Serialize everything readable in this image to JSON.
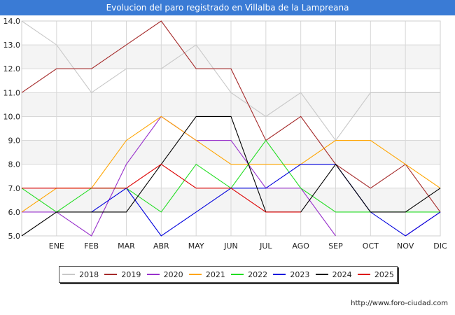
{
  "title": "Evolucion del paro registrado en Villalba de la Lampreana",
  "footer": "http://www.foro-ciudad.com",
  "chart_data": {
    "type": "line",
    "title": "Evolucion del paro registrado en Villalba de la Lampreana",
    "xlabel": "",
    "ylabel": "",
    "ylim": [
      5.0,
      14.0
    ],
    "yticks": [
      "5.0",
      "6.0",
      "7.0",
      "8.0",
      "9.0",
      "10.0",
      "11.0",
      "12.0",
      "13.0",
      "14.0"
    ],
    "categories": [
      "",
      "ENE",
      "FEB",
      "MAR",
      "ABR",
      "MAY",
      "JUN",
      "JUL",
      "AGO",
      "SEP",
      "OCT",
      "NOV",
      "DIC"
    ],
    "grid": true,
    "legend_position": "bottom",
    "series": [
      {
        "name": "2018",
        "color": "#c8c8c8",
        "values": [
          14,
          13,
          11,
          12,
          12,
          13,
          11,
          10,
          11,
          9,
          11,
          11,
          11
        ]
      },
      {
        "name": "2019",
        "color": "#a52a2a",
        "values": [
          11,
          12,
          12,
          13,
          14,
          12,
          12,
          9,
          10,
          8,
          7,
          8,
          6
        ]
      },
      {
        "name": "2020",
        "color": "#9932cc",
        "values": [
          6,
          6,
          5,
          8,
          10,
          9,
          9,
          7,
          7,
          5,
          null,
          5,
          6
        ]
      },
      {
        "name": "2021",
        "color": "#ffa500",
        "values": [
          6,
          7,
          7,
          9,
          10,
          9,
          8,
          8,
          8,
          9,
          9,
          8,
          7
        ]
      },
      {
        "name": "2022",
        "color": "#22dd22",
        "values": [
          7,
          6,
          7,
          7,
          6,
          8,
          7,
          9,
          7,
          6,
          6,
          6,
          6
        ]
      },
      {
        "name": "2023",
        "color": "#0000dd",
        "values": [
          null,
          null,
          6,
          7,
          5,
          6,
          7,
          7,
          8,
          8,
          6,
          5,
          6
        ]
      },
      {
        "name": "2024",
        "color": "#000000",
        "values": [
          5,
          6,
          6,
          6,
          8,
          10,
          10,
          6,
          6,
          8,
          6,
          6,
          7
        ]
      },
      {
        "name": "2025",
        "color": "#dd0000",
        "values": [
          7,
          7,
          7,
          7,
          8,
          7,
          7,
          6,
          6,
          null,
          null,
          null,
          null
        ]
      }
    ]
  }
}
